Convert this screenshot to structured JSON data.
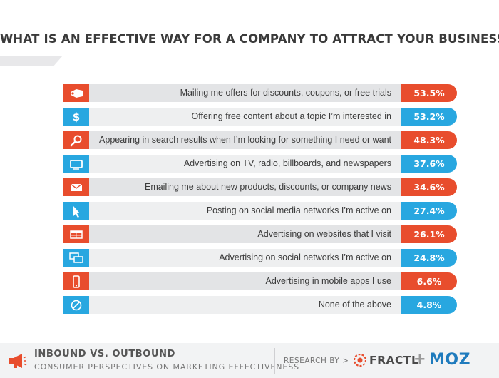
{
  "colors": {
    "red": "#e84d2d",
    "blue": "#28a7e0",
    "text": "#3a3a3a"
  },
  "chart_data": {
    "type": "bar",
    "orientation": "horizontal",
    "title": "WHAT IS AN EFFECTIVE WAY FOR A COMPANY TO ATTRACT YOUR BUSINESS?",
    "unit": "%",
    "categories": [
      "Mailing me offers for discounts, coupons, or free trials",
      "Offering free content about a topic I’m interested in",
      "Appearing in search results when I’m looking for something I need or want",
      "Advertising on TV, radio, billboards, and newspapers",
      "Emailing me about new products, discounts, or company news",
      "Posting on social media networks I’m active on",
      "Advertising on websites that I visit",
      "Advertising on social networks I’m active on",
      "Advertising in mobile apps I use",
      "None of the above"
    ],
    "values": [
      53.5,
      53.2,
      48.3,
      37.6,
      34.6,
      27.4,
      26.1,
      24.8,
      6.6,
      4.8
    ],
    "value_labels": [
      "53.5%",
      "53.2%",
      "48.3%",
      "37.6%",
      "34.6%",
      "27.4%",
      "26.1%",
      "24.8%",
      "6.6%",
      "4.8%"
    ],
    "icons": [
      "tag-icon",
      "dollar-icon",
      "search-icon",
      "tv-icon",
      "email-icon",
      "cursor-icon",
      "browser-icon",
      "chat-icon",
      "mobile-icon",
      "none-icon"
    ],
    "row_colors": [
      "red",
      "blue",
      "red",
      "blue",
      "red",
      "blue",
      "red",
      "blue",
      "red",
      "blue"
    ]
  },
  "footer": {
    "title": "INBOUND VS. OUTBOUND",
    "subtitle": "CONSUMER PERSPECTIVES ON MARKETING EFFECTIVENESS",
    "research_by": "RESEARCH BY >",
    "fractl": "FRACTL",
    "plus": "+",
    "moz": "MOZ",
    "icon": "megaphone-icon"
  }
}
